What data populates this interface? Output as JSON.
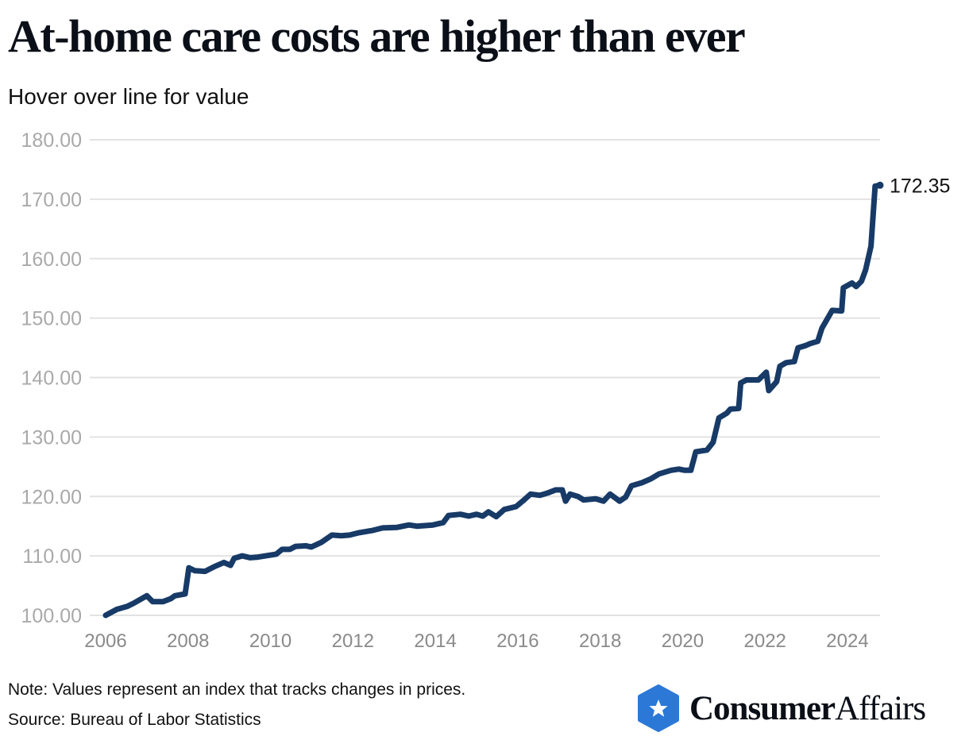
{
  "header": {
    "title": "At-home care costs are higher than ever",
    "subtitle": "Hover over line for value"
  },
  "footer": {
    "note": "Note: Values represent an index that tracks changes in prices.",
    "source": "Source: Bureau of Labor Statistics"
  },
  "logo": {
    "text_bold": "Consumer",
    "text_regular": "Affairs",
    "color": "#2b78d6"
  },
  "chart_data": {
    "type": "line",
    "title": "At-home care costs are higher than ever",
    "xlim": [
      2006,
      2024
    ],
    "ylim": [
      100,
      180
    ],
    "y_ticks": [
      "100.00",
      "110.00",
      "120.00",
      "130.00",
      "140.00",
      "150.00",
      "160.00",
      "170.00",
      "180.00"
    ],
    "x_ticks": [
      "2006",
      "2008",
      "2010",
      "2012",
      "2014",
      "2016",
      "2018",
      "2020",
      "2022",
      "2024"
    ],
    "grid": true,
    "line_color": "#173a67",
    "end_label": "172.35",
    "points": [
      [
        2006.0,
        100
      ],
      [
        2006.27,
        101
      ],
      [
        2006.52,
        101.5
      ],
      [
        2006.67,
        102
      ],
      [
        2007.0,
        103.3
      ],
      [
        2007.14,
        102.3
      ],
      [
        2007.39,
        102.3
      ],
      [
        2007.58,
        102.8
      ],
      [
        2007.68,
        103.3
      ],
      [
        2007.93,
        103.6
      ],
      [
        2008.02,
        108
      ],
      [
        2008.16,
        107.5
      ],
      [
        2008.41,
        107.4
      ],
      [
        2008.64,
        108.2
      ],
      [
        2008.87,
        108.9
      ],
      [
        2009.03,
        108.4
      ],
      [
        2009.12,
        109.6
      ],
      [
        2009.31,
        110
      ],
      [
        2009.51,
        109.7
      ],
      [
        2009.7,
        109.8
      ],
      [
        2010.14,
        110.3
      ],
      [
        2010.28,
        111.1
      ],
      [
        2010.47,
        111.1
      ],
      [
        2010.61,
        111.6
      ],
      [
        2010.86,
        111.7
      ],
      [
        2010.99,
        111.5
      ],
      [
        2011.24,
        112.3
      ],
      [
        2011.49,
        113.5
      ],
      [
        2011.72,
        113.4
      ],
      [
        2011.92,
        113.5
      ],
      [
        2012.15,
        113.9
      ],
      [
        2012.49,
        114.3
      ],
      [
        2012.72,
        114.7
      ],
      [
        2013.07,
        114.8
      ],
      [
        2013.36,
        115.2
      ],
      [
        2013.55,
        115
      ],
      [
        2013.94,
        115.2
      ],
      [
        2014.19,
        115.6
      ],
      [
        2014.32,
        116.8
      ],
      [
        2014.61,
        117
      ],
      [
        2014.81,
        116.7
      ],
      [
        2015.0,
        117
      ],
      [
        2015.15,
        116.7
      ],
      [
        2015.29,
        117.4
      ],
      [
        2015.48,
        116.6
      ],
      [
        2015.67,
        117.8
      ],
      [
        2015.96,
        118.3
      ],
      [
        2016.15,
        119.4
      ],
      [
        2016.31,
        120.4
      ],
      [
        2016.54,
        120.2
      ],
      [
        2016.73,
        120.6
      ],
      [
        2016.92,
        121.1
      ],
      [
        2017.08,
        121.1
      ],
      [
        2017.16,
        119.2
      ],
      [
        2017.27,
        120.4
      ],
      [
        2017.46,
        120
      ],
      [
        2017.6,
        119.4
      ],
      [
        2017.89,
        119.6
      ],
      [
        2018.08,
        119.2
      ],
      [
        2018.24,
        120.4
      ],
      [
        2018.47,
        119.2
      ],
      [
        2018.62,
        119.9
      ],
      [
        2018.76,
        121.8
      ],
      [
        2019.01,
        122.3
      ],
      [
        2019.24,
        123
      ],
      [
        2019.43,
        123.8
      ],
      [
        2019.72,
        124.4
      ],
      [
        2019.91,
        124.6
      ],
      [
        2020.05,
        124.4
      ],
      [
        2020.2,
        124.4
      ],
      [
        2020.32,
        127.5
      ],
      [
        2020.59,
        127.8
      ],
      [
        2020.74,
        129.1
      ],
      [
        2020.88,
        133.2
      ],
      [
        2021.07,
        134
      ],
      [
        2021.16,
        134.7
      ],
      [
        2021.36,
        134.8
      ],
      [
        2021.41,
        139.1
      ],
      [
        2021.55,
        139.6
      ],
      [
        2021.84,
        139.6
      ],
      [
        2022.03,
        140.9
      ],
      [
        2022.09,
        137.8
      ],
      [
        2022.28,
        139.3
      ],
      [
        2022.36,
        141.9
      ],
      [
        2022.51,
        142.5
      ],
      [
        2022.71,
        142.7
      ],
      [
        2022.8,
        145
      ],
      [
        2022.99,
        145.4
      ],
      [
        2023.09,
        145.7
      ],
      [
        2023.28,
        146.1
      ],
      [
        2023.38,
        148.3
      ],
      [
        2023.63,
        151.3
      ],
      [
        2023.86,
        151.2
      ],
      [
        2023.9,
        155.1
      ],
      [
        2024.11,
        155.9
      ],
      [
        2024.21,
        155.3
      ],
      [
        2024.34,
        156.2
      ],
      [
        2024.44,
        158.1
      ],
      [
        2024.57,
        162.1
      ],
      [
        2024.67,
        172.2
      ],
      [
        2024.79,
        172.35
      ]
    ]
  }
}
